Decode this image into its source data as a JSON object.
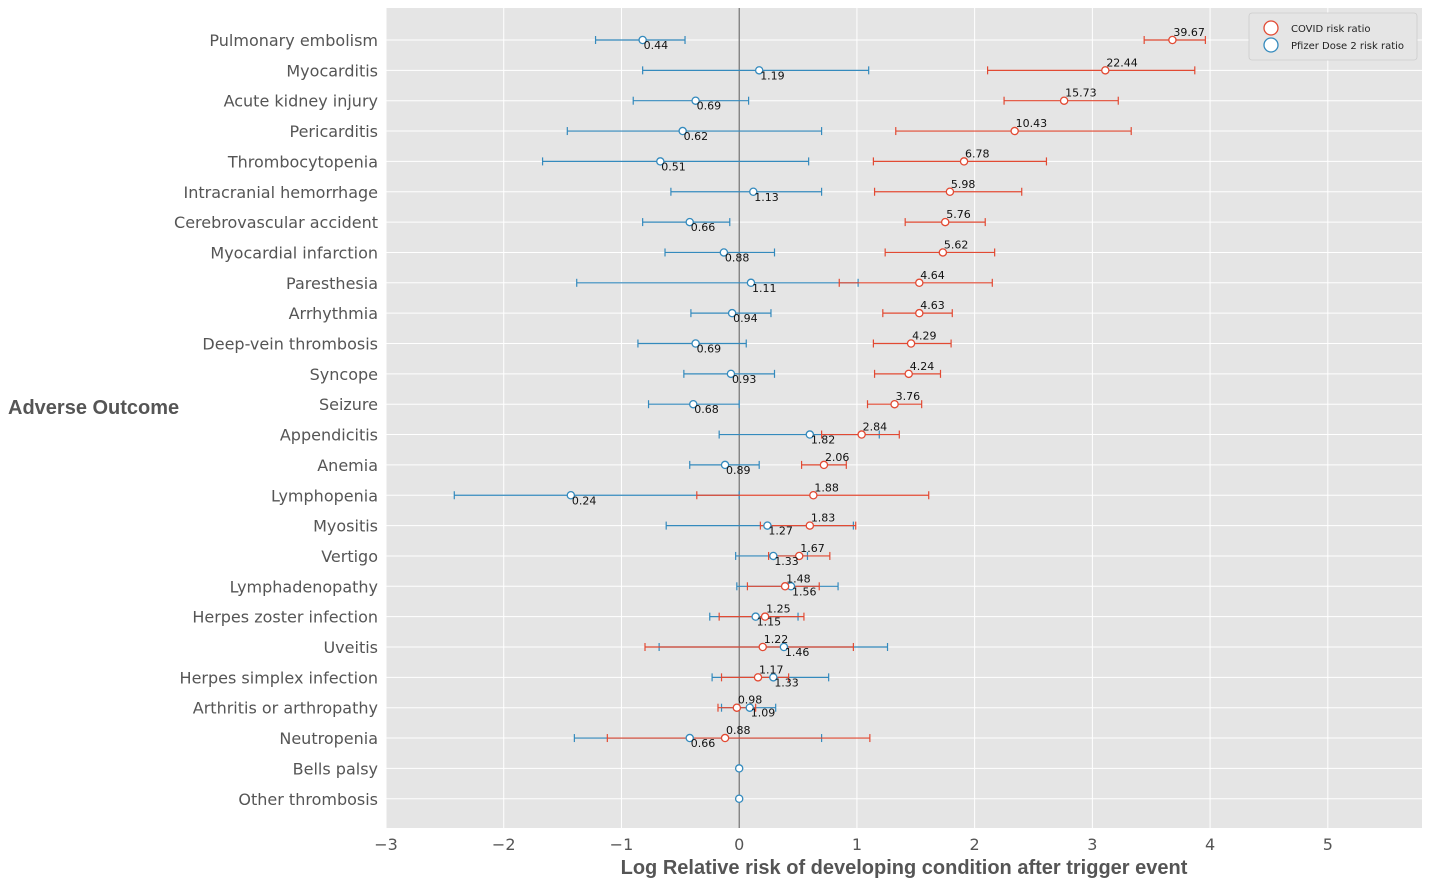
{
  "chart_data": {
    "type": "scatter",
    "title": "",
    "xlabel": "Log Relative risk of developing condition after trigger event",
    "ylabel": "Adverse Outcome",
    "xlim": [
      -3,
      5.8
    ],
    "xticks": [
      -3,
      -2,
      -1,
      0,
      1,
      2,
      3,
      4,
      5
    ],
    "xtick_labels": [
      "−3",
      "−2",
      "−1",
      "0",
      "1",
      "2",
      "3",
      "4",
      "5"
    ],
    "grid": true,
    "legend_position": "top-right",
    "categories": [
      "Pulmonary embolism",
      "Myocarditis",
      "Acute kidney injury",
      "Pericarditis",
      "Thrombocytopenia",
      "Intracranial hemorrhage",
      "Cerebrovascular accident",
      "Myocardial infarction",
      "Paresthesia",
      "Arrhythmia",
      "Deep-vein thrombosis",
      "Syncope",
      "Seizure",
      "Appendicitis",
      "Anemia",
      "Lymphopenia",
      "Myositis",
      "Vertigo",
      "Lymphadenopathy",
      "Herpes zoster infection",
      "Uveitis",
      "Herpes simplex infection",
      "Arthritis or arthropathy",
      "Neutropenia",
      "Bells palsy",
      "Other thrombosis"
    ],
    "series": [
      {
        "name": "COVID risk ratio",
        "color": "#E24A33",
        "points": [
          {
            "category": "Pulmonary embolism",
            "label": "39.67",
            "x": 3.68,
            "lo": 3.44,
            "hi": 3.96
          },
          {
            "category": "Myocarditis",
            "label": "22.44",
            "x": 3.11,
            "lo": 2.11,
            "hi": 3.87
          },
          {
            "category": "Acute kidney injury",
            "label": "15.73",
            "x": 2.76,
            "lo": 2.25,
            "hi": 3.22
          },
          {
            "category": "Pericarditis",
            "label": "10.43",
            "x": 2.34,
            "lo": 1.33,
            "hi": 3.33
          },
          {
            "category": "Thrombocytopenia",
            "label": "6.78",
            "x": 1.91,
            "lo": 1.14,
            "hi": 2.61
          },
          {
            "category": "Intracranial hemorrhage",
            "label": "5.98",
            "x": 1.79,
            "lo": 1.15,
            "hi": 2.4
          },
          {
            "category": "Cerebrovascular accident",
            "label": "5.76",
            "x": 1.75,
            "lo": 1.41,
            "hi": 2.09
          },
          {
            "category": "Myocardial infarction",
            "label": "5.62",
            "x": 1.73,
            "lo": 1.24,
            "hi": 2.17
          },
          {
            "category": "Paresthesia",
            "label": "4.64",
            "x": 1.53,
            "lo": 0.85,
            "hi": 2.15
          },
          {
            "category": "Arrhythmia",
            "label": "4.63",
            "x": 1.53,
            "lo": 1.22,
            "hi": 1.81
          },
          {
            "category": "Deep-vein thrombosis",
            "label": "4.29",
            "x": 1.46,
            "lo": 1.14,
            "hi": 1.8
          },
          {
            "category": "Syncope",
            "label": "4.24",
            "x": 1.44,
            "lo": 1.15,
            "hi": 1.71
          },
          {
            "category": "Seizure",
            "label": "3.76",
            "x": 1.32,
            "lo": 1.09,
            "hi": 1.55
          },
          {
            "category": "Appendicitis",
            "label": "2.84",
            "x": 1.04,
            "lo": 0.7,
            "hi": 1.36
          },
          {
            "category": "Anemia",
            "label": "2.06",
            "x": 0.72,
            "lo": 0.53,
            "hi": 0.91
          },
          {
            "category": "Lymphopenia",
            "label": "1.88",
            "x": 0.63,
            "lo": -0.36,
            "hi": 1.61
          },
          {
            "category": "Myositis",
            "label": "1.83",
            "x": 0.6,
            "lo": 0.18,
            "hi": 0.99
          },
          {
            "category": "Vertigo",
            "label": "1.67",
            "x": 0.51,
            "lo": 0.25,
            "hi": 0.77
          },
          {
            "category": "Lymphadenopathy",
            "label": "1.48",
            "x": 0.39,
            "lo": 0.07,
            "hi": 0.68
          },
          {
            "category": "Herpes zoster infection",
            "label": "1.25",
            "x": 0.22,
            "lo": -0.17,
            "hi": 0.55
          },
          {
            "category": "Uveitis",
            "label": "1.22",
            "x": 0.2,
            "lo": -0.8,
            "hi": 0.97
          },
          {
            "category": "Herpes simplex infection",
            "label": "1.17",
            "x": 0.16,
            "lo": -0.15,
            "hi": 0.42
          },
          {
            "category": "Arthritis or arthropathy",
            "label": "0.98",
            "x": -0.02,
            "lo": -0.18,
            "hi": 0.14
          },
          {
            "category": "Neutropenia",
            "label": "0.88",
            "x": -0.12,
            "lo": -1.12,
            "hi": 1.11
          }
        ]
      },
      {
        "name": "Pfizer Dose 2 risk ratio",
        "color": "#348ABD",
        "points": [
          {
            "category": "Pulmonary embolism",
            "label": "0.44",
            "x": -0.82,
            "lo": -1.22,
            "hi": -0.46
          },
          {
            "category": "Myocarditis",
            "label": "1.19",
            "x": 0.17,
            "lo": -0.82,
            "hi": 1.1
          },
          {
            "category": "Acute kidney injury",
            "label": "0.69",
            "x": -0.37,
            "lo": -0.9,
            "hi": 0.08
          },
          {
            "category": "Pericarditis",
            "label": "0.62",
            "x": -0.48,
            "lo": -1.46,
            "hi": 0.7
          },
          {
            "category": "Thrombocytopenia",
            "label": "0.51",
            "x": -0.67,
            "lo": -1.67,
            "hi": 0.59
          },
          {
            "category": "Intracranial hemorrhage",
            "label": "1.13",
            "x": 0.12,
            "lo": -0.58,
            "hi": 0.7
          },
          {
            "category": "Cerebrovascular accident",
            "label": "0.66",
            "x": -0.42,
            "lo": -0.82,
            "hi": -0.08
          },
          {
            "category": "Myocardial infarction",
            "label": "0.88",
            "x": -0.13,
            "lo": -0.63,
            "hi": 0.3
          },
          {
            "category": "Paresthesia",
            "label": "1.11",
            "x": 0.1,
            "lo": -1.38,
            "hi": 1.01
          },
          {
            "category": "Arrhythmia",
            "label": "0.94",
            "x": -0.06,
            "lo": -0.41,
            "hi": 0.27
          },
          {
            "category": "Deep-vein thrombosis",
            "label": "0.69",
            "x": -0.37,
            "lo": -0.86,
            "hi": 0.06
          },
          {
            "category": "Syncope",
            "label": "0.93",
            "x": -0.07,
            "lo": -0.47,
            "hi": 0.3
          },
          {
            "category": "Seizure",
            "label": "0.68",
            "x": -0.39,
            "lo": -0.77,
            "hi": 0.0
          },
          {
            "category": "Appendicitis",
            "label": "1.82",
            "x": 0.6,
            "lo": -0.17,
            "hi": 1.19
          },
          {
            "category": "Anemia",
            "label": "0.89",
            "x": -0.12,
            "lo": -0.42,
            "hi": 0.17
          },
          {
            "category": "Lymphopenia",
            "label": "0.24",
            "x": -1.43,
            "lo": -2.42,
            "hi": 0.0
          },
          {
            "category": "Myositis",
            "label": "1.27",
            "x": 0.24,
            "lo": -0.62,
            "hi": 0.97
          },
          {
            "category": "Vertigo",
            "label": "1.33",
            "x": 0.29,
            "lo": -0.03,
            "hi": 0.58
          },
          {
            "category": "Lymphadenopathy",
            "label": "1.56",
            "x": 0.44,
            "lo": -0.02,
            "hi": 0.84
          },
          {
            "category": "Herpes zoster infection",
            "label": "1.15",
            "x": 0.14,
            "lo": -0.25,
            "hi": 0.5
          },
          {
            "category": "Uveitis",
            "label": "1.46",
            "x": 0.38,
            "lo": -0.68,
            "hi": 1.26
          },
          {
            "category": "Herpes simplex infection",
            "label": "1.33",
            "x": 0.29,
            "lo": -0.23,
            "hi": 0.76
          },
          {
            "category": "Arthritis or arthropathy",
            "label": "1.09",
            "x": 0.09,
            "lo": -0.15,
            "hi": 0.31
          },
          {
            "category": "Neutropenia",
            "label": "0.66",
            "x": -0.42,
            "lo": -1.4,
            "hi": 0.7
          },
          {
            "category": "Bells palsy",
            "label": "",
            "x": 0.0,
            "lo": 0.0,
            "hi": 0.0
          },
          {
            "category": "Other thrombosis",
            "label": "",
            "x": 0.0,
            "lo": 0.0,
            "hi": 0.0
          }
        ]
      }
    ]
  },
  "colors": {
    "plot_background": "#E5E5E5",
    "grid": "#FFFFFF",
    "zero_line": "#555555",
    "covid": "#E24A33",
    "pfizer": "#348ABD"
  }
}
